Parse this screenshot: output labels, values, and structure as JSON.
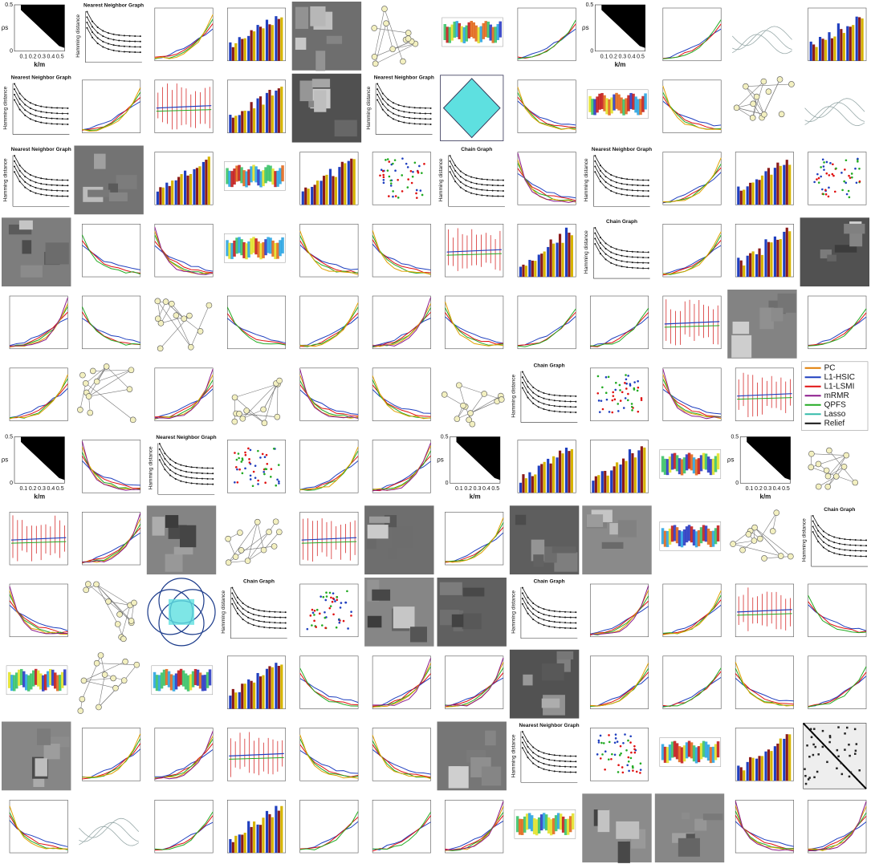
{
  "nn_title": "Nearest Neighbor Graph",
  "chain_title": "Chain Graph",
  "ylabel": "Hamming distance",
  "heatmap": {
    "xlabel": "k/m",
    "ylabel": "ρs",
    "xticks": [
      0.1,
      0.2,
      0.3,
      0.4,
      0.5
    ],
    "yticks": [
      0,
      0.5
    ]
  },
  "legend": [
    {
      "name": "PC",
      "color": "#e07b00"
    },
    {
      "name": "L1-HSIC",
      "color": "#1f3fbf"
    },
    {
      "name": "L1-LSMI",
      "color": "#e01010"
    },
    {
      "name": "mRMR",
      "color": "#8b1a8b"
    },
    {
      "name": "QPFS",
      "color": "#22aa22"
    },
    {
      "name": "Lasso",
      "color": "#33bbaa"
    },
    {
      "name": "Relief",
      "color": "#111111"
    }
  ]
}
